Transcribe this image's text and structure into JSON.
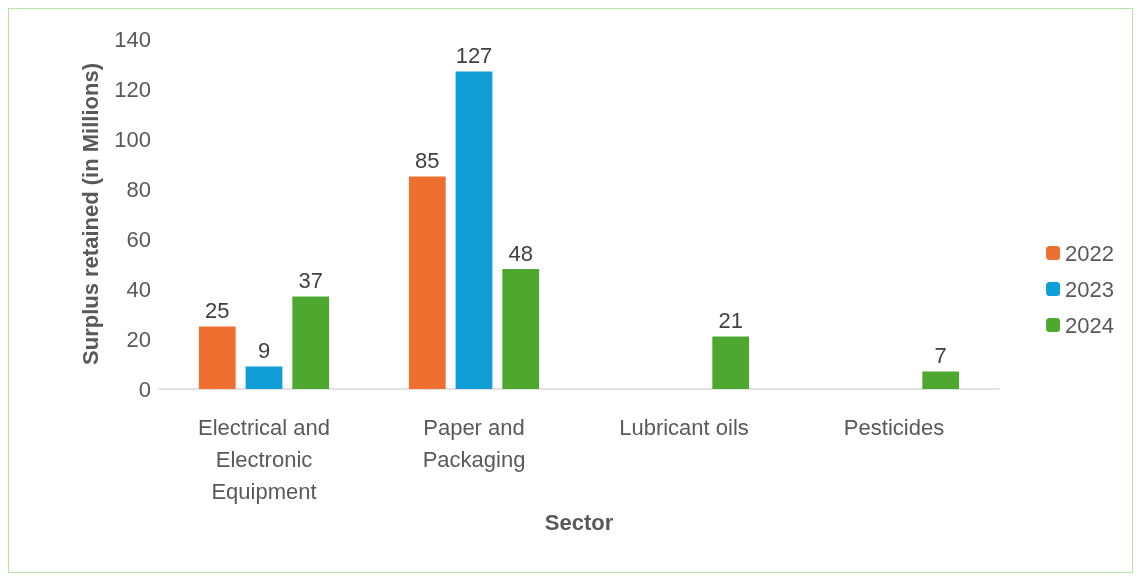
{
  "chart_data": {
    "type": "bar",
    "xlabel": "Sector",
    "ylabel": "Surplus retained (in Millions)",
    "categories": [
      "Electrical and\nElectronic\nEquipment",
      "Paper and\nPackaging",
      "Lubricant oils",
      "Pesticides"
    ],
    "series": [
      {
        "name": "2022",
        "color": "#ed7031",
        "values": [
          25,
          85,
          null,
          null
        ]
      },
      {
        "name": "2023",
        "color": "#0f9ed5",
        "values": [
          9,
          127,
          null,
          null
        ]
      },
      {
        "name": "2024",
        "color": "#4ea72e",
        "values": [
          37,
          48,
          21,
          7
        ]
      }
    ],
    "ylim": [
      0,
      140
    ],
    "yticks": [
      0,
      20,
      40,
      60,
      80,
      100,
      120,
      140
    ],
    "grid": false,
    "legend": "right",
    "data_labels": true
  }
}
